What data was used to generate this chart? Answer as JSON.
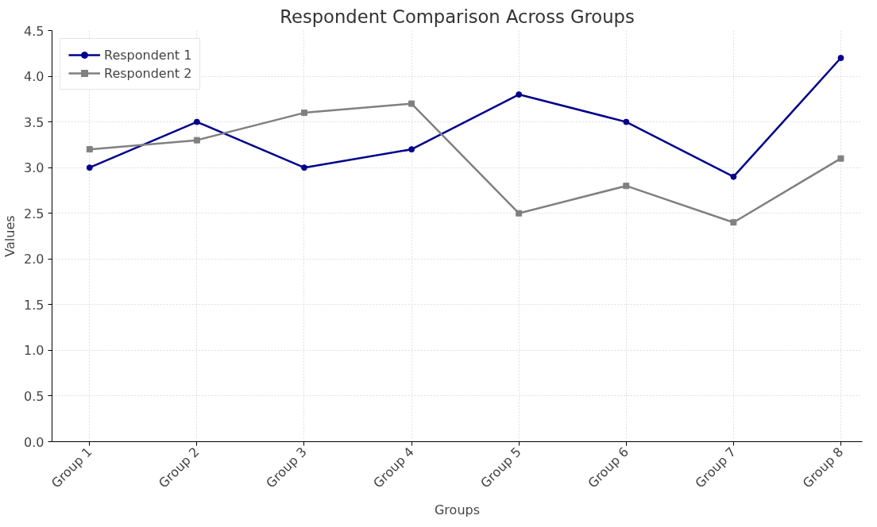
{
  "chart_data": {
    "type": "line",
    "title": "Respondent Comparison Across Groups",
    "xlabel": "Groups",
    "ylabel": "Values",
    "categories": [
      "Group 1",
      "Group 2",
      "Group 3",
      "Group 4",
      "Group 5",
      "Group 6",
      "Group 7",
      "Group 8"
    ],
    "series": [
      {
        "name": "Respondent 1",
        "color": "#00008b",
        "marker": "circle",
        "values": [
          3.0,
          3.5,
          3.0,
          3.2,
          3.8,
          3.5,
          2.9,
          4.2
        ]
      },
      {
        "name": "Respondent 2",
        "color": "#808080",
        "marker": "square",
        "values": [
          3.2,
          3.3,
          3.6,
          3.7,
          2.5,
          2.8,
          2.4,
          3.1
        ]
      }
    ],
    "ylim": [
      0,
      4.5
    ],
    "yticks": [
      {
        "value": 0,
        "label": "0.0"
      },
      0.5,
      {
        "value": 1,
        "label": "1.0"
      },
      1.5,
      {
        "value": 2,
        "label": "2.0"
      },
      2.5,
      {
        "value": 3,
        "label": "3.0"
      },
      3.5,
      {
        "value": 4,
        "label": "4.0"
      },
      4.5
    ],
    "grid": true,
    "legend": "top left",
    "line_style": "solid"
  }
}
